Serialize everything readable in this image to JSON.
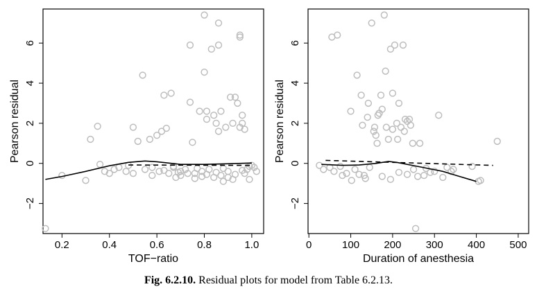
{
  "caption": {
    "label": "Fig. 6.2.10.",
    "text": "Residual plots for model from Table 6.2.13."
  },
  "colors": {
    "points": "#bdbdbd",
    "smooth": "#000000",
    "reference": "#000000"
  },
  "chart_data": [
    {
      "type": "scatter",
      "xlabel": "TOF−ratio",
      "ylabel": "Pearson residual",
      "xlim": [
        0.12,
        1.05
      ],
      "ylim": [
        -3.5,
        7.7
      ],
      "xticks": [
        0.2,
        0.4,
        0.6,
        0.8,
        1.0
      ],
      "xtick_labels": [
        "0.2",
        "0.4",
        "0.6",
        "0.8",
        "1.0"
      ],
      "yticks": [
        -2,
        0,
        2,
        4,
        6
      ],
      "ytick_labels": [
        "−2",
        "0",
        "2",
        "4",
        "6"
      ],
      "grid": false,
      "points": [
        [
          0.13,
          -3.25
        ],
        [
          0.2,
          -0.6
        ],
        [
          0.3,
          -0.85
        ],
        [
          0.32,
          1.2
        ],
        [
          0.35,
          1.85
        ],
        [
          0.36,
          -0.05
        ],
        [
          0.38,
          -0.4
        ],
        [
          0.4,
          -0.5
        ],
        [
          0.42,
          -0.3
        ],
        [
          0.44,
          -0.2
        ],
        [
          0.47,
          -0.4
        ],
        [
          0.48,
          -0.1
        ],
        [
          0.5,
          1.8
        ],
        [
          0.5,
          -0.5
        ],
        [
          0.52,
          1.1
        ],
        [
          0.54,
          4.4
        ],
        [
          0.55,
          -0.3
        ],
        [
          0.57,
          1.2
        ],
        [
          0.58,
          -0.6
        ],
        [
          0.6,
          1.4
        ],
        [
          0.61,
          -0.4
        ],
        [
          0.62,
          1.6
        ],
        [
          0.63,
          3.4
        ],
        [
          0.64,
          1.75
        ],
        [
          0.65,
          -0.5
        ],
        [
          0.66,
          3.5
        ],
        [
          0.67,
          -0.2
        ],
        [
          0.68,
          -0.7
        ],
        [
          0.7,
          -0.4
        ],
        [
          0.72,
          -0.3
        ],
        [
          0.74,
          5.9
        ],
        [
          0.74,
          3.05
        ],
        [
          0.75,
          1.05
        ],
        [
          0.76,
          -0.5
        ],
        [
          0.78,
          2.6
        ],
        [
          0.79,
          -0.65
        ],
        [
          0.8,
          7.4
        ],
        [
          0.8,
          4.55
        ],
        [
          0.81,
          2.6
        ],
        [
          0.81,
          2.2
        ],
        [
          0.82,
          -0.3
        ],
        [
          0.83,
          5.7
        ],
        [
          0.84,
          2.4
        ],
        [
          0.85,
          2.0
        ],
        [
          0.86,
          7.0
        ],
        [
          0.86,
          5.9
        ],
        [
          0.86,
          1.6
        ],
        [
          0.87,
          2.6
        ],
        [
          0.88,
          -0.9
        ],
        [
          0.89,
          1.8
        ],
        [
          0.9,
          -0.4
        ],
        [
          0.91,
          3.3
        ],
        [
          0.92,
          2.0
        ],
        [
          0.93,
          3.3
        ],
        [
          0.94,
          3.0
        ],
        [
          0.95,
          6.4
        ],
        [
          0.95,
          6.3
        ],
        [
          0.95,
          1.8
        ],
        [
          0.96,
          2.4
        ],
        [
          0.96,
          2.0
        ],
        [
          0.97,
          1.7
        ],
        [
          0.98,
          -0.3
        ],
        [
          0.99,
          -0.8
        ],
        [
          1.0,
          -0.1
        ],
        [
          1.01,
          -0.2
        ],
        [
          1.02,
          -0.4
        ],
        [
          0.58,
          -0.2
        ],
        [
          0.63,
          -0.35
        ],
        [
          0.7,
          -0.6
        ],
        [
          0.77,
          -0.25
        ],
        [
          0.85,
          -0.45
        ],
        [
          0.9,
          -0.7
        ],
        [
          0.93,
          -0.55
        ],
        [
          0.96,
          -0.35
        ],
        [
          0.99,
          -0.15
        ],
        [
          0.84,
          -0.7
        ],
        [
          0.76,
          -0.75
        ],
        [
          0.69,
          -0.45
        ],
        [
          0.88,
          -0.25
        ],
        [
          0.92,
          -0.8
        ],
        [
          0.67,
          -0.15
        ],
        [
          0.73,
          -0.5
        ],
        [
          0.79,
          -0.4
        ],
        [
          0.81,
          -0.55
        ],
        [
          0.87,
          -0.6
        ],
        [
          0.97,
          -0.5
        ]
      ],
      "smooth_line": [
        [
          0.13,
          -0.8
        ],
        [
          0.2,
          -0.65
        ],
        [
          0.3,
          -0.4
        ],
        [
          0.4,
          -0.12
        ],
        [
          0.48,
          0.05
        ],
        [
          0.55,
          0.12
        ],
        [
          0.6,
          0.08
        ],
        [
          0.7,
          -0.05
        ],
        [
          0.8,
          -0.05
        ],
        [
          0.9,
          -0.02
        ],
        [
          1.0,
          0.02
        ]
      ],
      "reference_line": [
        [
          0.48,
          -0.08
        ],
        [
          1.0,
          -0.1
        ]
      ]
    },
    {
      "type": "scatter",
      "xlabel": "Duration of anesthesia",
      "ylabel": "Pearson residual",
      "xlim": [
        -2,
        525
      ],
      "ylim": [
        -3.5,
        7.7
      ],
      "xticks": [
        0,
        100,
        200,
        300,
        400,
        500
      ],
      "xtick_labels": [
        "0",
        "100",
        "200",
        "300",
        "400",
        "500"
      ],
      "yticks": [
        -2,
        0,
        2,
        4,
        6
      ],
      "ytick_labels": [
        "−2",
        "0",
        "2",
        "4",
        "6"
      ],
      "grid": false,
      "points": [
        [
          25,
          -0.1
        ],
        [
          35,
          -0.3
        ],
        [
          50,
          -0.2
        ],
        [
          55,
          6.3
        ],
        [
          68,
          6.4
        ],
        [
          90,
          -0.5
        ],
        [
          100,
          2.6
        ],
        [
          102,
          -0.85
        ],
        [
          115,
          4.4
        ],
        [
          125,
          3.4
        ],
        [
          128,
          1.9
        ],
        [
          132,
          -0.6
        ],
        [
          140,
          2.3
        ],
        [
          142,
          3.0
        ],
        [
          150,
          7.0
        ],
        [
          155,
          1.6
        ],
        [
          157,
          1.8
        ],
        [
          160,
          1.4
        ],
        [
          163,
          1.0
        ],
        [
          165,
          2.4
        ],
        [
          168,
          2.5
        ],
        [
          172,
          3.4
        ],
        [
          175,
          2.7
        ],
        [
          180,
          7.4
        ],
        [
          183,
          4.6
        ],
        [
          185,
          1.8
        ],
        [
          190,
          1.2
        ],
        [
          195,
          5.7
        ],
        [
          200,
          3.5
        ],
        [
          200,
          1.7
        ],
        [
          205,
          5.9
        ],
        [
          210,
          2.0
        ],
        [
          212,
          1.2
        ],
        [
          215,
          3.0
        ],
        [
          220,
          1.8
        ],
        [
          225,
          5.9
        ],
        [
          228,
          1.6
        ],
        [
          230,
          2.2
        ],
        [
          235,
          2.1
        ],
        [
          240,
          2.2
        ],
        [
          243,
          1.9
        ],
        [
          248,
          1.0
        ],
        [
          255,
          -3.25
        ],
        [
          265,
          1.0
        ],
        [
          275,
          -0.6
        ],
        [
          300,
          -0.4
        ],
        [
          310,
          2.4
        ],
        [
          320,
          -0.7
        ],
        [
          330,
          -0.2
        ],
        [
          345,
          -0.3
        ],
        [
          390,
          -0.15
        ],
        [
          405,
          -0.9
        ],
        [
          410,
          -0.85
        ],
        [
          450,
          1.1
        ],
        [
          60,
          -0.4
        ],
        [
          75,
          -0.15
        ],
        [
          110,
          -0.3
        ],
        [
          120,
          -0.55
        ],
        [
          145,
          -0.2
        ],
        [
          175,
          -0.65
        ],
        [
          195,
          -0.8
        ],
        [
          215,
          -0.45
        ],
        [
          235,
          -0.55
        ],
        [
          250,
          -0.3
        ],
        [
          260,
          -0.65
        ],
        [
          280,
          -0.25
        ],
        [
          290,
          -0.45
        ],
        [
          340,
          -0.4
        ],
        [
          80,
          -0.6
        ],
        [
          135,
          -0.75
        ]
      ],
      "smooth_line": [
        [
          30,
          -0.05
        ],
        [
          80,
          -0.1
        ],
        [
          120,
          -0.08
        ],
        [
          160,
          0.0
        ],
        [
          190,
          0.1
        ],
        [
          210,
          0.05
        ],
        [
          260,
          -0.15
        ],
        [
          320,
          -0.4
        ],
        [
          360,
          -0.65
        ],
        [
          400,
          -0.9
        ]
      ],
      "reference_line": [
        [
          40,
          0.15
        ],
        [
          440,
          -0.1
        ]
      ]
    }
  ]
}
